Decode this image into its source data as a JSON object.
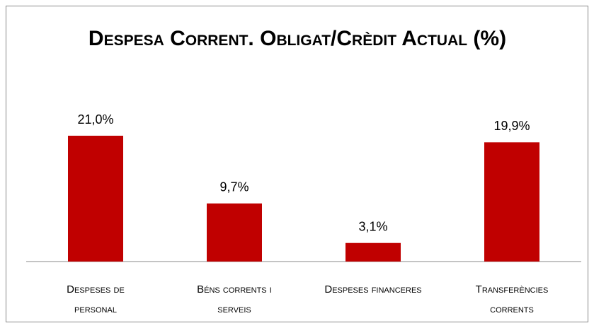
{
  "chart_data": {
    "type": "bar",
    "title": "Despesa Corrent. Obligat/Crèdit Actual (%)",
    "categories": [
      "Despeses de personal",
      "Béns corrents i serveis",
      "Despeses financeres",
      "Transferències corrents"
    ],
    "values": [
      21.0,
      9.7,
      3.1,
      19.9
    ],
    "value_labels": [
      "21,0%",
      "9,7%",
      "3,1%",
      "19,9%"
    ],
    "color": "#c00000"
  }
}
